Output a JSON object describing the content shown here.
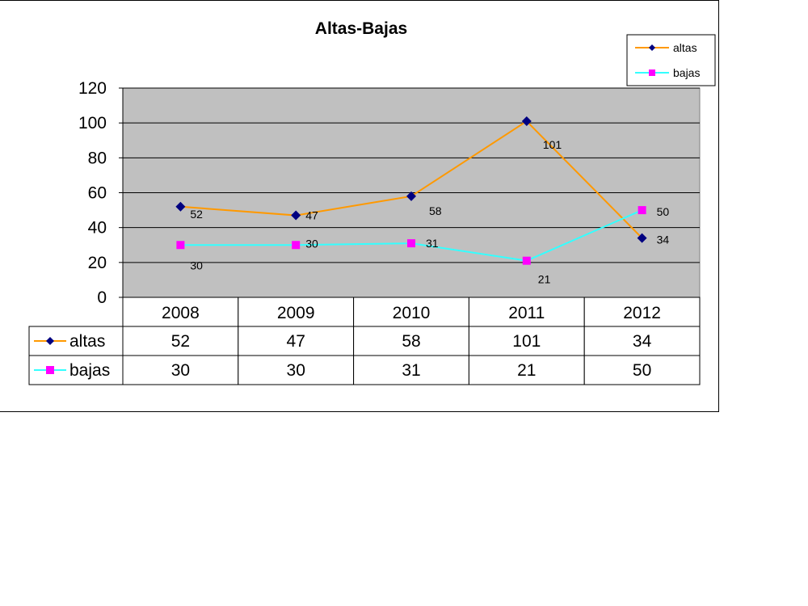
{
  "chart_data": {
    "type": "line",
    "title": "Altas-Bajas",
    "categories": [
      "2008",
      "2009",
      "2010",
      "2011",
      "2012"
    ],
    "series": [
      {
        "name": "altas",
        "values": [
          52,
          47,
          58,
          101,
          34
        ],
        "color": "#FF9900",
        "marker": "diamond",
        "marker_color": "#000080"
      },
      {
        "name": "bajas",
        "values": [
          30,
          30,
          31,
          21,
          50
        ],
        "color": "#33FFFF",
        "marker": "square",
        "marker_color": "#FF00FF"
      }
    ],
    "ylim": [
      0,
      120
    ],
    "yticks": [
      "0",
      "20",
      "40",
      "60",
      "80",
      "100",
      "120"
    ],
    "grid": true,
    "plot_background": "#C0C0C0",
    "legend_position": "top-right",
    "data_table": true
  }
}
